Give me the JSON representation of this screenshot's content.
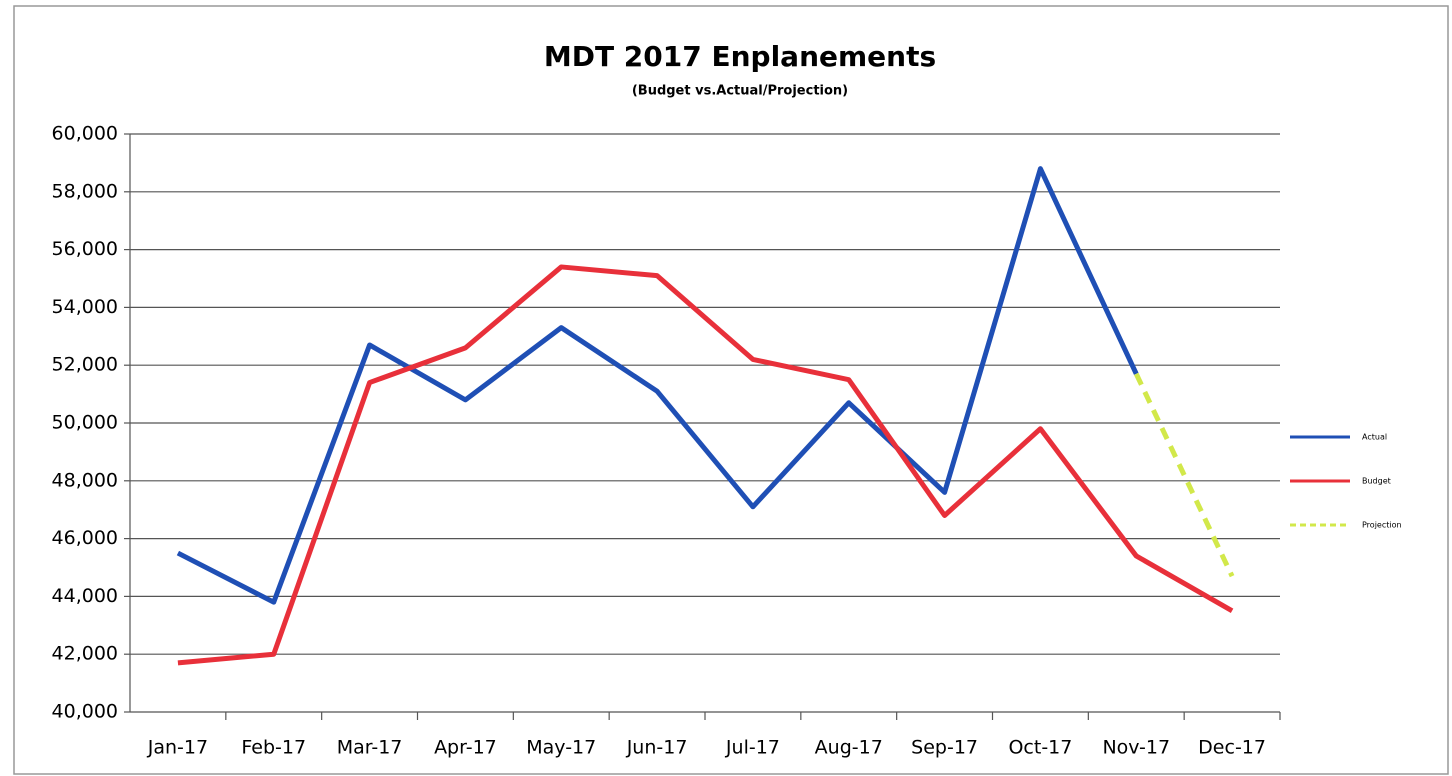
{
  "chart_data": {
    "type": "line",
    "title": "MDT 2017 Enplanements",
    "subtitle": "(Budget vs.Actual/Projection)",
    "categories": [
      "Jan-17",
      "Feb-17",
      "Mar-17",
      "Apr-17",
      "May-17",
      "Jun-17",
      "Jul-17",
      "Aug-17",
      "Sep-17",
      "Oct-17",
      "Nov-17",
      "Dec-17"
    ],
    "series": [
      {
        "name": "Actual",
        "color": "#1f4fb5",
        "dashed": false,
        "values": [
          45500,
          43800,
          52700,
          50800,
          53300,
          51100,
          47100,
          50700,
          47600,
          58800,
          51700,
          null
        ]
      },
      {
        "name": "Budget",
        "color": "#e8303a",
        "dashed": false,
        "values": [
          41700,
          42000,
          51400,
          52600,
          55400,
          55100,
          52200,
          51500,
          46800,
          49800,
          45400,
          43500
        ]
      },
      {
        "name": "Projection",
        "color": "#d2e84a",
        "dashed": true,
        "values": [
          null,
          null,
          null,
          null,
          null,
          null,
          null,
          null,
          null,
          null,
          51700,
          44700
        ]
      }
    ],
    "ylim": [
      40000,
      60000
    ],
    "yticks": [
      {
        "value": 40000,
        "label": "40,000"
      },
      {
        "value": 42000,
        "label": "42,000"
      },
      {
        "value": 44000,
        "label": "44,000"
      },
      {
        "value": 46000,
        "label": "46,000"
      },
      {
        "value": 48000,
        "label": "48,000"
      },
      {
        "value": 50000,
        "label": "50,000"
      },
      {
        "value": 52000,
        "label": "52,000"
      },
      {
        "value": 54000,
        "label": "54,000"
      },
      {
        "value": 56000,
        "label": "56,000"
      },
      {
        "value": 58000,
        "label": "58,000"
      },
      {
        "value": 60000,
        "label": "60,000"
      }
    ],
    "grid": true,
    "legend": "right"
  }
}
